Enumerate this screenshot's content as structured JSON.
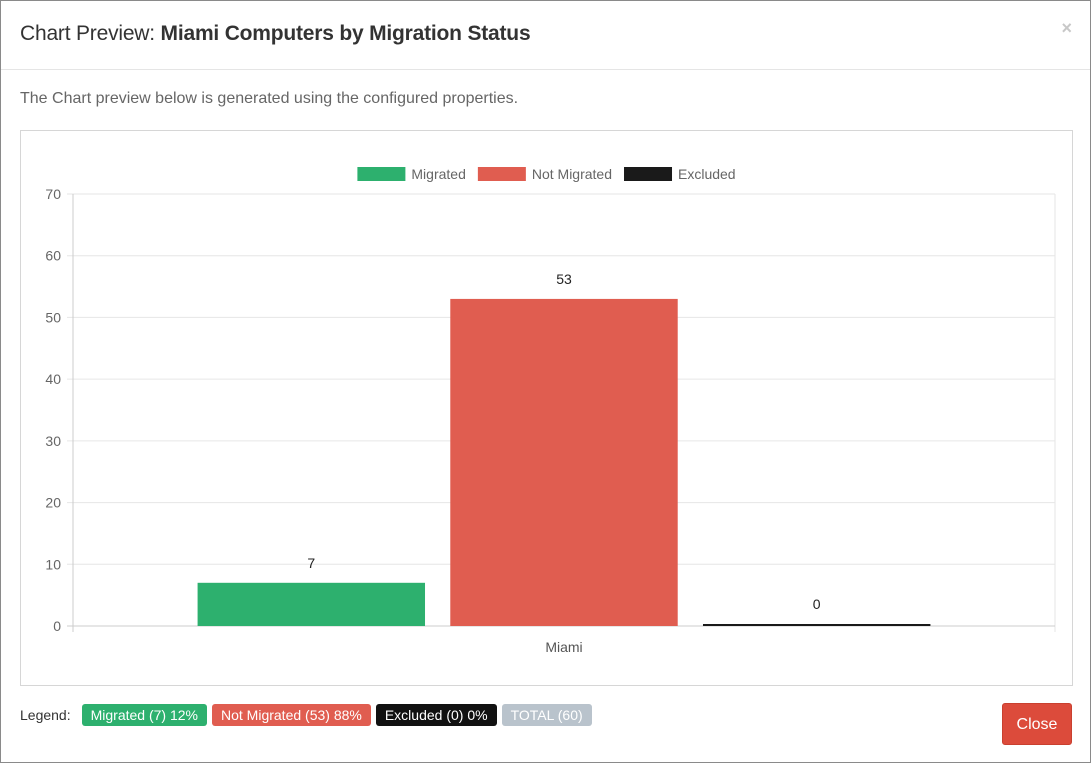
{
  "modal": {
    "title_prefix": "Chart Preview: ",
    "title_main": "Miami Computers by Migration Status",
    "close_icon": "×",
    "description": "The Chart preview below is generated using the configured properties."
  },
  "footer": {
    "legend_label": "Legend:",
    "badges": [
      {
        "text": "Migrated (7)  12%",
        "color": "#2db06e"
      },
      {
        "text": "Not Migrated (53)  88%",
        "color": "#e05d50"
      },
      {
        "text": "Excluded (0)  0%",
        "color": "#111111"
      },
      {
        "text": "TOTAL (60)",
        "color": "#b9c3cc"
      }
    ],
    "close_label": "Close"
  },
  "chart_data": {
    "type": "bar",
    "categories": [
      "Miami"
    ],
    "series": [
      {
        "name": "Migrated",
        "values": [
          7
        ],
        "color": "#2db06e"
      },
      {
        "name": "Not Migrated",
        "values": [
          53
        ],
        "color": "#e05d50"
      },
      {
        "name": "Excluded",
        "values": [
          0
        ],
        "color": "#1a1a1a"
      }
    ],
    "ylim": [
      0,
      70
    ],
    "yticks": [
      0,
      10,
      20,
      30,
      40,
      50,
      60,
      70
    ],
    "grid": true,
    "legend_position": "top-center",
    "data_labels": true
  }
}
